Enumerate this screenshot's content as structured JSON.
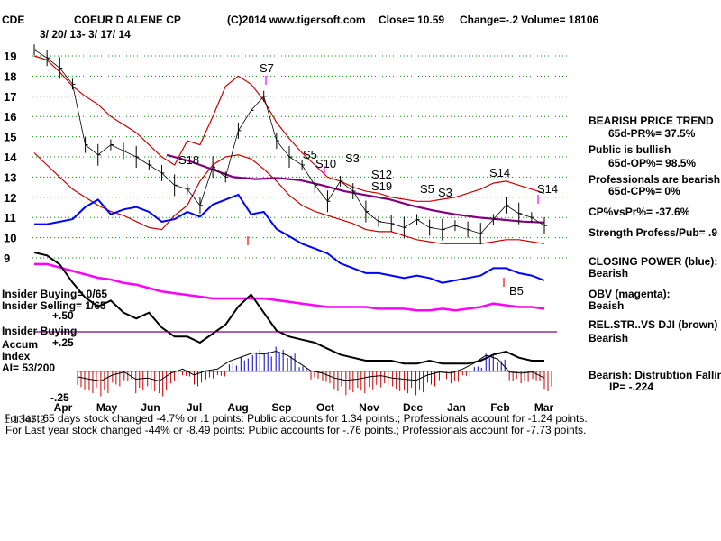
{
  "header": {
    "ticker": "CDE",
    "company": "COEUR D ALENE CP",
    "site": "(C)2014 www.tigersoft.com",
    "close": "Close=  10.59",
    "change": "Change=-.2",
    "volume": "Volume= 18106",
    "date_range": "3/ 20/ 13-  3/ 17/ 14"
  },
  "colors": {
    "price": "#000000",
    "bands": "#cc0000",
    "ma": "#800080",
    "closing_power": "#0000ff",
    "obv": "#ff00ff",
    "relstr": "#000000",
    "grid": "#009900",
    "accum_pos": "#0000cc",
    "accum_neg": "#cc0000",
    "signal": "#ff00ff"
  },
  "chart_data": {
    "type": "line",
    "title": "COEUR D ALENE CP",
    "y_ticks": [
      "19",
      "18",
      "17",
      "16",
      "15",
      "14",
      "13",
      "12",
      "11",
      "10",
      "9"
    ],
    "ylim": [
      9,
      19.5
    ],
    "months": [
      "Apr",
      "May",
      "Jun",
      "Jul",
      "Aug",
      "Sep",
      "Oct",
      "Nov",
      "Dec",
      "Jan",
      "Feb",
      "Mar"
    ],
    "price": [
      19.3,
      18.9,
      18.4,
      17.6,
      14.6,
      14.1,
      14.6,
      14.3,
      14.0,
      13.6,
      13.2,
      12.6,
      12.4,
      11.6,
      13.5,
      13.0,
      15.3,
      16.3,
      17.0,
      14.8,
      14.0,
      13.6,
      12.6,
      11.8,
      12.8,
      12.3,
      11.3,
      10.8,
      10.7,
      10.5,
      10.9,
      10.5,
      10.4,
      10.6,
      10.4,
      10.2,
      10.9,
      11.6,
      11.2,
      11.0,
      10.6
    ],
    "upper_band": [
      19.0,
      18.8,
      18.2,
      17.5,
      17.0,
      16.6,
      16.0,
      15.6,
      15.2,
      14.6,
      14.0,
      13.6,
      14.8,
      14.6,
      16.0,
      17.5,
      18.0,
      17.6,
      16.8,
      15.7,
      14.9,
      14.2,
      13.6,
      13.0,
      12.8,
      12.5,
      12.3,
      12.2,
      12.0,
      11.9,
      11.8,
      11.8,
      11.9,
      12.0,
      12.2,
      12.4,
      12.7,
      12.8,
      12.6,
      12.4,
      12.2
    ],
    "lower_band": [
      14.2,
      13.6,
      13.0,
      12.4,
      12.0,
      11.6,
      11.3,
      11.1,
      10.8,
      10.5,
      10.4,
      11.1,
      11.6,
      12.8,
      13.6,
      14.0,
      14.1,
      13.9,
      13.4,
      12.8,
      12.1,
      11.6,
      11.3,
      11.1,
      10.9,
      10.7,
      10.4,
      10.3,
      10.3,
      10.1,
      9.9,
      9.8,
      9.7,
      9.7,
      9.7,
      9.7,
      9.8,
      9.9,
      9.9,
      9.8,
      9.7
    ],
    "ma": [
      14.1,
      13.8,
      13.4,
      13.0,
      12.9,
      12.95,
      12.85,
      12.6,
      12.3,
      12.1,
      11.9,
      11.6,
      11.35,
      11.15,
      11.0,
      10.9,
      10.8,
      10.75
    ],
    "closing_power_pct": [
      100,
      100,
      101,
      102,
      107,
      110,
      104,
      106,
      107,
      105,
      101,
      102,
      105,
      103,
      108,
      110,
      112,
      104,
      105,
      98,
      95,
      92,
      90,
      88,
      84,
      82,
      80,
      80,
      79,
      78,
      79,
      78,
      76,
      77,
      78,
      79,
      82,
      82,
      80,
      79,
      77
    ],
    "obv_pct": [
      100,
      100,
      98,
      96,
      94,
      92,
      91,
      89,
      88,
      86,
      84,
      83,
      82,
      81,
      80,
      80,
      80,
      80,
      80,
      79,
      78,
      77,
      76,
      75,
      75,
      75,
      75,
      74,
      74,
      74,
      73,
      73,
      74,
      73,
      74,
      75,
      77,
      76,
      75,
      75,
      74
    ],
    "relstr_pct": [
      100,
      99,
      96,
      90,
      85,
      82,
      84,
      80,
      78,
      80,
      75,
      72,
      72,
      70,
      73,
      76,
      82,
      86,
      80,
      74,
      72,
      71,
      70,
      68,
      66,
      65,
      64,
      64,
      64,
      63,
      63,
      64,
      63,
      63,
      63,
      64,
      66,
      67,
      65,
      64,
      64
    ],
    "accum": [
      -0.18,
      -0.22,
      -0.25,
      -0.15,
      -0.1,
      -0.22,
      -0.2,
      -0.25,
      -0.12,
      -0.05,
      -0.15,
      -0.08,
      -0.05,
      0.08,
      0.15,
      0.22,
      0.2,
      0.25,
      0.18,
      0.05,
      -0.08,
      -0.12,
      -0.2,
      -0.24,
      -0.22,
      -0.18,
      -0.16,
      -0.2,
      -0.22,
      -0.24,
      -0.15,
      -0.1,
      -0.12,
      -0.05,
      0.05,
      0.18,
      0.12,
      -0.1,
      -0.12,
      -0.1,
      -0.2
    ],
    "accum_scale": [
      "+.50",
      "+.25",
      "-.25"
    ],
    "signals": [
      "S7",
      "S5",
      "S10",
      "S3",
      "S18",
      "S12",
      "S19",
      "S5",
      "S3",
      "S14",
      "S14",
      "B5"
    ]
  },
  "indicator_labels": {
    "insider_buying": "Insider Buying= 0/65",
    "insider_selling": "Insider Selling= 1/65",
    "insider_buying2": "Insider Buying",
    "accum": "Accum",
    "index": "Index",
    "ai": "AI= 53/200"
  },
  "right_panel": {
    "bearish_trend": "BEARISH PRICE TREND",
    "pr": "65d-PR%= 37.5%",
    "public_bullish": "Public is bullish",
    "op": "65d-OP%= 98.5%",
    "prof_bearish": "Professionals are bearish",
    "cp": "65d-CP%= 0%",
    "cp_vs_pr": "CP%vsPr%= -37.6%",
    "strength": "Strength Profess/Pub= .9",
    "closing_power": "CLOSING POWER (blue):",
    "cp_state": "Bearish",
    "obv": "OBV (magenta):",
    "obv_state": "Beaish",
    "relstr": "REL.STR..VS DJI (brown)",
    "relstr_state": "Bearish",
    "distribution": "Bearish: Distrubtion Falling",
    "ip": "IP= -.224"
  },
  "footer": {
    "line1": "For last  65 days stock changed -4.7% or  .1 points:  Public accounts for  1.34 points.;  Professionals account for -1.24 points.",
    "line2": "For Last year stock changed -44% or -8.49 points:  Public accounts for -.76 points.;  Professionals account for -7.73 points.",
    "overprint": "1.1347.2"
  }
}
